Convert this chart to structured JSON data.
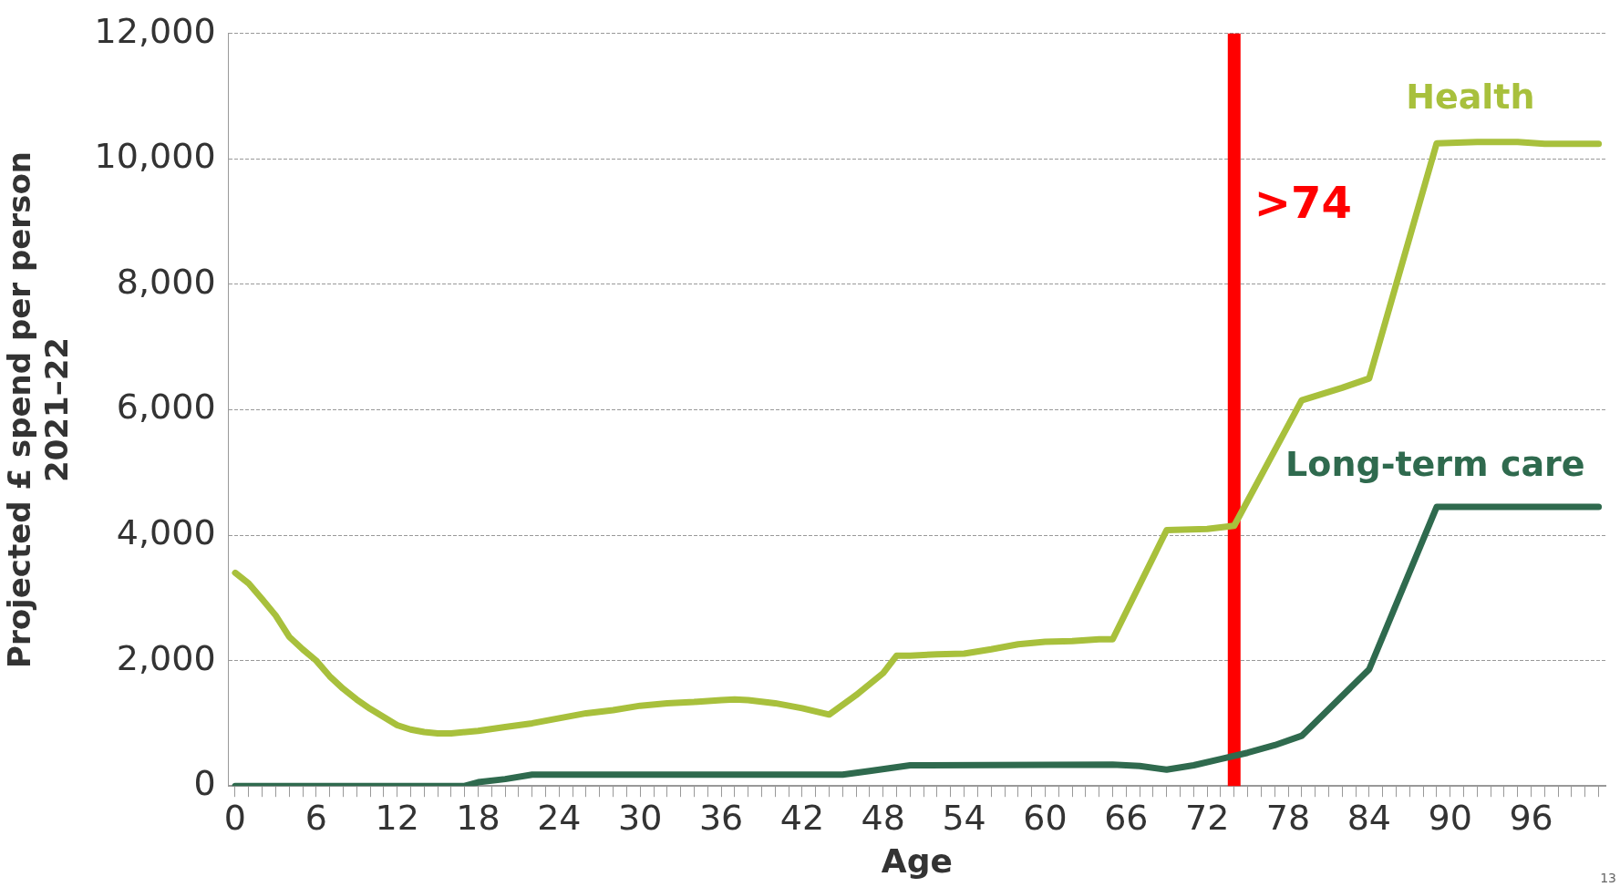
{
  "chart_data": {
    "type": "line",
    "xlabel": "Age",
    "ylabel": "Projected £ spend per person\n2021–22",
    "xlim": [
      -0.5,
      101.5
    ],
    "xticks": [
      0,
      {
        "value": 1,
        "label": null
      },
      {
        "value": 2,
        "label": null
      },
      {
        "value": 3,
        "label": null
      },
      {
        "value": 4,
        "label": null
      },
      {
        "value": 5,
        "label": null
      },
      6,
      {
        "value": 7,
        "label": null
      },
      {
        "value": 8,
        "label": null
      },
      {
        "value": 9,
        "label": null
      },
      {
        "value": 10,
        "label": null
      },
      {
        "value": 11,
        "label": null
      },
      12,
      {
        "value": 13,
        "label": null
      },
      {
        "value": 14,
        "label": null
      },
      {
        "value": 15,
        "label": null
      },
      {
        "value": 16,
        "label": null
      },
      {
        "value": 17,
        "label": null
      },
      18,
      {
        "value": 19,
        "label": null
      },
      {
        "value": 20,
        "label": null
      },
      {
        "value": 21,
        "label": null
      },
      {
        "value": 22,
        "label": null
      },
      {
        "value": 23,
        "label": null
      },
      24,
      {
        "value": 25,
        "label": null
      },
      {
        "value": 26,
        "label": null
      },
      {
        "value": 27,
        "label": null
      },
      {
        "value": 28,
        "label": null
      },
      {
        "value": 29,
        "label": null
      },
      30,
      {
        "value": 31,
        "label": null
      },
      {
        "value": 32,
        "label": null
      },
      {
        "value": 33,
        "label": null
      },
      {
        "value": 34,
        "label": null
      },
      {
        "value": 35,
        "label": null
      },
      36,
      {
        "value": 37,
        "label": null
      },
      {
        "value": 38,
        "label": null
      },
      {
        "value": 39,
        "label": null
      },
      {
        "value": 40,
        "label": null
      },
      {
        "value": 41,
        "label": null
      },
      42,
      {
        "value": 43,
        "label": null
      },
      {
        "value": 44,
        "label": null
      },
      {
        "value": 45,
        "label": null
      },
      {
        "value": 46,
        "label": null
      },
      {
        "value": 47,
        "label": null
      },
      48,
      {
        "value": 49,
        "label": null
      },
      {
        "value": 50,
        "label": null
      },
      {
        "value": 51,
        "label": null
      },
      {
        "value": 52,
        "label": null
      },
      {
        "value": 53,
        "label": null
      },
      54,
      {
        "value": 55,
        "label": null
      },
      {
        "value": 56,
        "label": null
      },
      {
        "value": 57,
        "label": null
      },
      {
        "value": 58,
        "label": null
      },
      {
        "value": 59,
        "label": null
      },
      60,
      {
        "value": 61,
        "label": null
      },
      {
        "value": 62,
        "label": null
      },
      {
        "value": 63,
        "label": null
      },
      {
        "value": 64,
        "label": null
      },
      {
        "value": 65,
        "label": null
      },
      66,
      {
        "value": 67,
        "label": null
      },
      {
        "value": 68,
        "label": null
      },
      {
        "value": 69,
        "label": null
      },
      {
        "value": 70,
        "label": null
      },
      {
        "value": 71,
        "label": null
      },
      72,
      {
        "value": 73,
        "label": null
      },
      {
        "value": 74,
        "label": null
      },
      {
        "value": 75,
        "label": null
      },
      {
        "value": 76,
        "label": null
      },
      {
        "value": 77,
        "label": null
      },
      78,
      {
        "value": 79,
        "label": null
      },
      {
        "value": 80,
        "label": null
      },
      {
        "value": 81,
        "label": null
      },
      {
        "value": 82,
        "label": null
      },
      {
        "value": 83,
        "label": null
      },
      84,
      {
        "value": 85,
        "label": null
      },
      {
        "value": 86,
        "label": null
      },
      {
        "value": 87,
        "label": null
      },
      {
        "value": 88,
        "label": null
      },
      {
        "value": 89,
        "label": null
      },
      90,
      {
        "value": 91,
        "label": null
      },
      {
        "value": 92,
        "label": null
      },
      {
        "value": 93,
        "label": null
      },
      {
        "value": 94,
        "label": null
      },
      {
        "value": 95,
        "label": null
      },
      96,
      {
        "value": 97,
        "label": null
      },
      {
        "value": 98,
        "label": null
      },
      {
        "value": 99,
        "label": null
      },
      {
        "value": 100,
        "label": null
      },
      {
        "value": 101,
        "label": null
      }
    ],
    "ylim": [
      0,
      12000
    ],
    "yticks": [
      {
        "value": 0,
        "label": "0"
      },
      {
        "value": 2000,
        "label": "2,000"
      },
      {
        "value": 4000,
        "label": "4,000"
      },
      {
        "value": 6000,
        "label": "6,000"
      },
      {
        "value": 8000,
        "label": "8,000"
      },
      {
        "value": 10000,
        "label": "10,000"
      },
      {
        "value": 12000,
        "label": "12,000"
      }
    ],
    "grid": "y",
    "legend": false,
    "marker": "none",
    "line_style": "solid",
    "series": [
      {
        "name": "Health",
        "color": "#a8c03c",
        "x": [
          0,
          1,
          2,
          3,
          4,
          5,
          6,
          7,
          8,
          9,
          10,
          11,
          12,
          13,
          14,
          15,
          16,
          18,
          20,
          22,
          24,
          26,
          28,
          30,
          32,
          34,
          36,
          37,
          38,
          40,
          42,
          44,
          46,
          48,
          49,
          50,
          52,
          54,
          56,
          58,
          60,
          62,
          64,
          65,
          69,
          72,
          74,
          79,
          82,
          84,
          89,
          92,
          95,
          97,
          101
        ],
        "values": [
          3400,
          3230,
          2980,
          2720,
          2380,
          2180,
          2000,
          1750,
          1550,
          1380,
          1230,
          1100,
          970,
          900,
          860,
          840,
          840,
          880,
          940,
          1000,
          1080,
          1160,
          1210,
          1280,
          1320,
          1340,
          1370,
          1380,
          1370,
          1320,
          1240,
          1140,
          1450,
          1800,
          2080,
          2080,
          2100,
          2110,
          2180,
          2260,
          2300,
          2310,
          2340,
          2340,
          4080,
          4100,
          4150,
          6150,
          6350,
          6500,
          10250,
          10270,
          10270,
          10240,
          10240
        ]
      },
      {
        "name": "Long-term care",
        "color": "#2f6a4e",
        "x": [
          0,
          17,
          18,
          20,
          22,
          45,
          47,
          50,
          65,
          67,
          69,
          71,
          73,
          75,
          77,
          79,
          84,
          89,
          101
        ],
        "values": [
          0,
          0,
          60,
          110,
          180,
          180,
          240,
          330,
          340,
          320,
          260,
          330,
          430,
          530,
          650,
          800,
          1860,
          4450,
          4450
        ]
      }
    ],
    "ref_lines": [
      {
        "axis": "x",
        "value": 74,
        "label": ">74",
        "color": "#ff0000"
      }
    ],
    "annotations": [
      "13"
    ]
  }
}
